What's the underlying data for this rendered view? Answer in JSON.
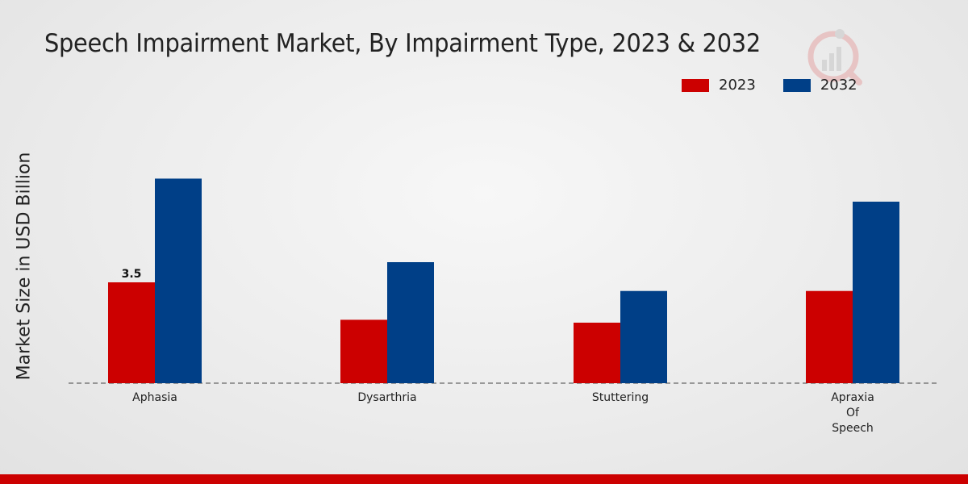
{
  "colors": {
    "y2023": "#cc0000",
    "y2032": "#003f87",
    "bottom_bar": "#cc0000"
  },
  "chart_data": {
    "type": "bar",
    "title": "Speech Impairment Market, By Impairment Type, 2023 & 2032",
    "xlabel": "",
    "ylabel": "Market Size in USD Billion",
    "categories": [
      "Aphasia",
      "Dysarthria",
      "Stuttering",
      "Apraxia Of Speech"
    ],
    "series": [
      {
        "name": "2023",
        "values": [
          3.5,
          2.2,
          2.1,
          3.2
        ]
      },
      {
        "name": "2032",
        "values": [
          7.1,
          4.2,
          3.2,
          6.3
        ]
      }
    ],
    "data_labels": [
      {
        "series": 0,
        "index": 0,
        "text": "3.5"
      }
    ],
    "ylim": [
      0,
      10.5
    ],
    "legend_position": "top-right",
    "grid": false
  }
}
